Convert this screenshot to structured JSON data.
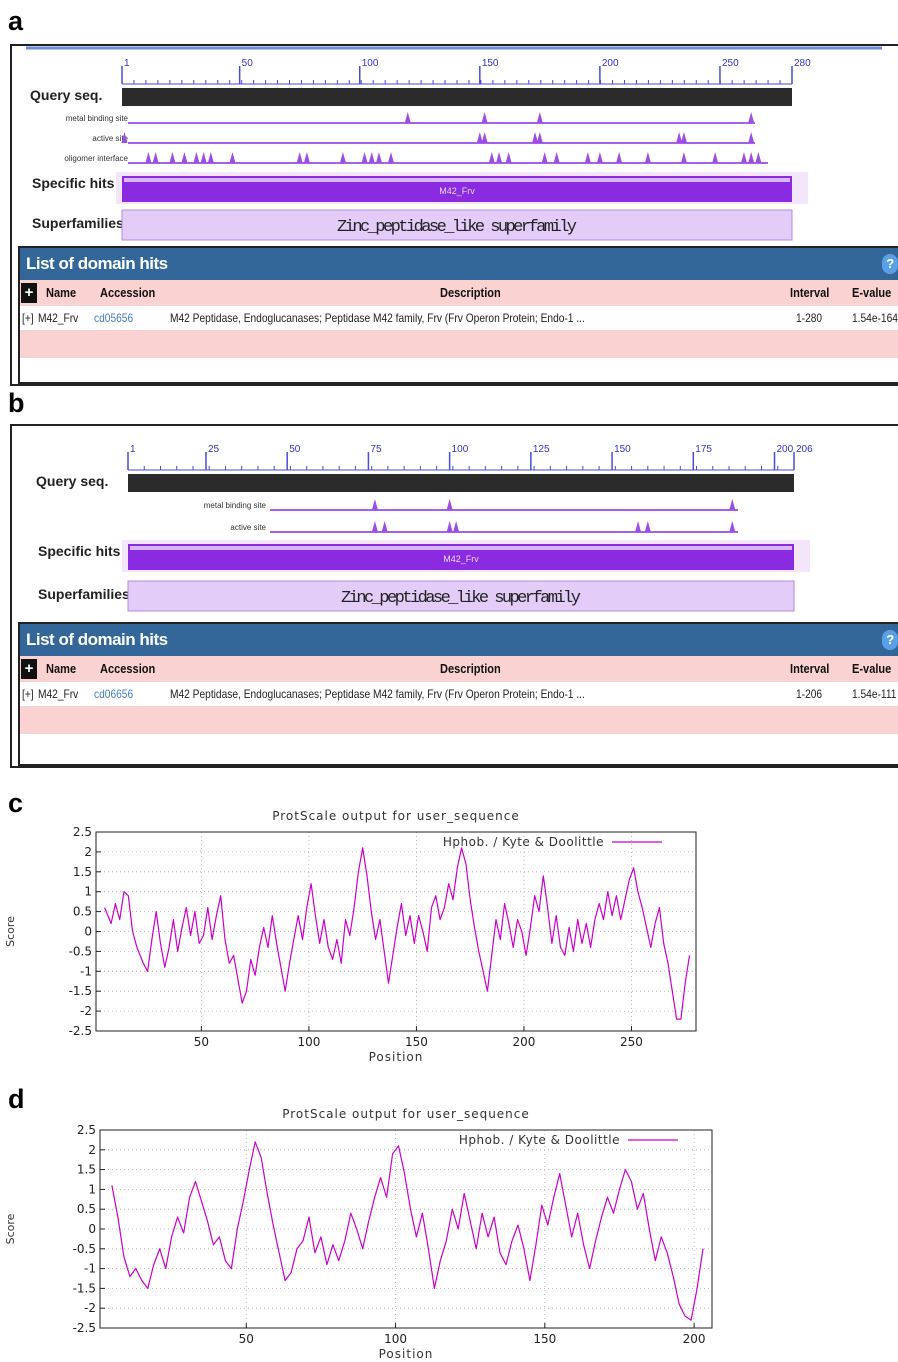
{
  "panels": {
    "a": {
      "letter": "a",
      "query_label": "Query seq.",
      "ticks": [
        "1",
        "50",
        "100",
        "150",
        "200",
        "250",
        "280"
      ],
      "feature_tracks": [
        "metal binding site",
        "active site",
        "oligomer interface"
      ],
      "specific_hits_label": "Specific hits",
      "specific_hit_name": "M42_Frv",
      "superfamilies_label": "Superfamilies",
      "superfamily_name": "Zinc_peptidase_like superfamily",
      "hits_title": "List of domain hits",
      "columns": {
        "plus": "+",
        "name": "Name",
        "accession": "Accession",
        "description": "Description",
        "interval": "Interval",
        "evalue": "E-value"
      },
      "row": {
        "expand": "[+]",
        "name": "M42_Frv",
        "accession": "cd05656",
        "description": "M42 Peptidase, Endoglucanases; Peptidase M42 family, Frv (Frv Operon Protein; Endo-1 ...",
        "interval": "1-280",
        "evalue": "1.54e-164"
      }
    },
    "b": {
      "letter": "b",
      "query_label": "Query seq.",
      "ticks": [
        "1",
        "25",
        "50",
        "75",
        "100",
        "125",
        "150",
        "175",
        "200",
        "206"
      ],
      "feature_tracks": [
        "metal binding site",
        "active site"
      ],
      "specific_hits_label": "Specific hits",
      "specific_hit_name": "M42_Frv",
      "superfamilies_label": "Superfamilies",
      "superfamily_name": "Zinc_peptidase_like superfamily",
      "hits_title": "List of domain hits",
      "columns": {
        "plus": "+",
        "name": "Name",
        "accession": "Accession",
        "description": "Description",
        "interval": "Interval",
        "evalue": "E-value"
      },
      "row": {
        "expand": "[+]",
        "name": "M42_Frv",
        "accession": "cd06656",
        "description": "M42 Peptidase, Endoglucanases; Peptidase M42 family, Frv (Frv Operon Protein; Endo-1 ...",
        "interval": "1-206",
        "evalue": "1.54e-111"
      }
    },
    "c": {
      "letter": "c"
    },
    "d": {
      "letter": "d"
    }
  },
  "chart_data": [
    {
      "type": "line",
      "title": "ProtScale output for user_sequence",
      "xlabel": "Position",
      "ylabel": "Score",
      "xticks": [
        "50",
        "100",
        "150",
        "200",
        "250"
      ],
      "yticks": [
        "2.5",
        "2",
        "1.5",
        "1",
        "0.5",
        "0",
        "-0.5",
        "-1",
        "-1.5",
        "-2",
        "-2.5"
      ],
      "xlim": [
        1,
        280
      ],
      "ylim": [
        -2.5,
        2.5
      ],
      "grid": true,
      "legend": "top-right",
      "series": [
        {
          "name": "Hphob. / Kyte & Doolittle",
          "color": "#cc00cc",
          "points": [
            [
              5,
              0.6
            ],
            [
              8,
              0.2
            ],
            [
              10,
              0.7
            ],
            [
              12,
              0.3
            ],
            [
              14,
              1.0
            ],
            [
              16,
              0.9
            ],
            [
              18,
              0.0
            ],
            [
              20,
              -0.4
            ],
            [
              23,
              -0.8
            ],
            [
              25,
              -1.0
            ],
            [
              27,
              -0.2
            ],
            [
              29,
              0.5
            ],
            [
              31,
              -0.3
            ],
            [
              33,
              -0.9
            ],
            [
              35,
              -0.4
            ],
            [
              37,
              0.3
            ],
            [
              39,
              -0.5
            ],
            [
              41,
              0.1
            ],
            [
              43,
              0.6
            ],
            [
              45,
              -0.1
            ],
            [
              47,
              0.5
            ],
            [
              49,
              -0.3
            ],
            [
              51,
              -0.1
            ],
            [
              53,
              0.6
            ],
            [
              55,
              -0.2
            ],
            [
              57,
              0.4
            ],
            [
              59,
              0.9
            ],
            [
              61,
              -0.2
            ],
            [
              63,
              -0.8
            ],
            [
              65,
              -0.6
            ],
            [
              67,
              -1.2
            ],
            [
              69,
              -1.8
            ],
            [
              71,
              -1.5
            ],
            [
              73,
              -0.7
            ],
            [
              75,
              -1.1
            ],
            [
              77,
              -0.4
            ],
            [
              79,
              0.1
            ],
            [
              81,
              -0.4
            ],
            [
              83,
              0.4
            ],
            [
              85,
              -0.3
            ],
            [
              87,
              -0.9
            ],
            [
              89,
              -1.5
            ],
            [
              91,
              -0.8
            ],
            [
              93,
              -0.2
            ],
            [
              95,
              0.4
            ],
            [
              97,
              -0.2
            ],
            [
              99,
              0.6
            ],
            [
              101,
              1.2
            ],
            [
              103,
              0.4
            ],
            [
              105,
              -0.3
            ],
            [
              107,
              0.3
            ],
            [
              109,
              -0.4
            ],
            [
              111,
              -0.7
            ],
            [
              113,
              -0.2
            ],
            [
              115,
              -0.8
            ],
            [
              117,
              0.3
            ],
            [
              119,
              -0.1
            ],
            [
              121,
              0.6
            ],
            [
              123,
              1.5
            ],
            [
              125,
              2.1
            ],
            [
              127,
              1.4
            ],
            [
              129,
              0.5
            ],
            [
              131,
              -0.2
            ],
            [
              133,
              0.3
            ],
            [
              135,
              -0.5
            ],
            [
              137,
              -1.3
            ],
            [
              139,
              -0.6
            ],
            [
              141,
              0.1
            ],
            [
              143,
              0.7
            ],
            [
              145,
              -0.1
            ],
            [
              147,
              0.4
            ],
            [
              149,
              -0.3
            ],
            [
              151,
              0.4
            ],
            [
              153,
              0.0
            ],
            [
              155,
              -0.5
            ],
            [
              157,
              0.6
            ],
            [
              159,
              0.9
            ],
            [
              161,
              0.3
            ],
            [
              163,
              0.6
            ],
            [
              165,
              1.2
            ],
            [
              167,
              0.8
            ],
            [
              169,
              1.6
            ],
            [
              171,
              2.1
            ],
            [
              173,
              1.7
            ],
            [
              175,
              0.8
            ],
            [
              177,
              0.1
            ],
            [
              179,
              -0.5
            ],
            [
              181,
              -1.0
            ],
            [
              183,
              -1.5
            ],
            [
              185,
              -0.6
            ],
            [
              187,
              0.3
            ],
            [
              189,
              -0.2
            ],
            [
              191,
              0.7
            ],
            [
              193,
              0.2
            ],
            [
              195,
              -0.4
            ],
            [
              197,
              0.3
            ],
            [
              199,
              0.0
            ],
            [
              201,
              -0.6
            ],
            [
              203,
              0.1
            ],
            [
              205,
              0.9
            ],
            [
              207,
              0.5
            ],
            [
              209,
              1.4
            ],
            [
              211,
              0.6
            ],
            [
              213,
              -0.3
            ],
            [
              215,
              0.4
            ],
            [
              217,
              -0.4
            ],
            [
              219,
              -0.6
            ],
            [
              221,
              0.1
            ],
            [
              223,
              -0.5
            ],
            [
              225,
              0.3
            ],
            [
              227,
              -0.3
            ],
            [
              229,
              0.2
            ],
            [
              231,
              -0.4
            ],
            [
              233,
              0.3
            ],
            [
              235,
              0.7
            ],
            [
              237,
              0.3
            ],
            [
              239,
              1.0
            ],
            [
              241,
              0.4
            ],
            [
              243,
              0.9
            ],
            [
              245,
              0.3
            ],
            [
              247,
              0.8
            ],
            [
              249,
              1.3
            ],
            [
              251,
              1.6
            ],
            [
              253,
              1.0
            ],
            [
              255,
              0.6
            ],
            [
              257,
              0.1
            ],
            [
              259,
              -0.4
            ],
            [
              261,
              0.2
            ],
            [
              263,
              0.6
            ],
            [
              265,
              -0.3
            ],
            [
              267,
              -0.8
            ],
            [
              269,
              -1.5
            ],
            [
              271,
              -2.2
            ],
            [
              273,
              -2.2
            ],
            [
              275,
              -1.3
            ],
            [
              277,
              -0.6
            ]
          ]
        }
      ]
    },
    {
      "type": "line",
      "title": "ProtScale output for user_sequence",
      "xlabel": "Position",
      "ylabel": "Score",
      "xticks": [
        "50",
        "100",
        "150",
        "200"
      ],
      "yticks": [
        "2.5",
        "2",
        "1.5",
        "1",
        "0.5",
        "0",
        "-0.5",
        "-1",
        "-1.5",
        "-2",
        "-2.5"
      ],
      "xlim": [
        1,
        206
      ],
      "ylim": [
        -2.5,
        2.5
      ],
      "grid": true,
      "legend": "top-right",
      "series": [
        {
          "name": "Hphob. / Kyte & Doolittle",
          "color": "#cc00cc",
          "points": [
            [
              5,
              1.1
            ],
            [
              7,
              0.3
            ],
            [
              9,
              -0.7
            ],
            [
              11,
              -1.2
            ],
            [
              13,
              -1.0
            ],
            [
              15,
              -1.3
            ],
            [
              17,
              -1.5
            ],
            [
              19,
              -0.9
            ],
            [
              21,
              -0.5
            ],
            [
              23,
              -1.0
            ],
            [
              25,
              -0.2
            ],
            [
              27,
              0.3
            ],
            [
              29,
              -0.1
            ],
            [
              31,
              0.8
            ],
            [
              33,
              1.2
            ],
            [
              35,
              0.7
            ],
            [
              37,
              0.2
            ],
            [
              39,
              -0.4
            ],
            [
              41,
              -0.2
            ],
            [
              43,
              -0.8
            ],
            [
              45,
              -1.0
            ],
            [
              47,
              0.0
            ],
            [
              49,
              0.7
            ],
            [
              51,
              1.5
            ],
            [
              53,
              2.2
            ],
            [
              55,
              1.8
            ],
            [
              57,
              0.9
            ],
            [
              59,
              0.1
            ],
            [
              61,
              -0.6
            ],
            [
              63,
              -1.3
            ],
            [
              65,
              -1.1
            ],
            [
              67,
              -0.5
            ],
            [
              69,
              -0.3
            ],
            [
              71,
              0.3
            ],
            [
              73,
              -0.6
            ],
            [
              75,
              -0.2
            ],
            [
              77,
              -0.9
            ],
            [
              79,
              -0.4
            ],
            [
              81,
              -0.8
            ],
            [
              83,
              -0.3
            ],
            [
              85,
              0.4
            ],
            [
              87,
              0.0
            ],
            [
              89,
              -0.5
            ],
            [
              91,
              0.2
            ],
            [
              93,
              0.8
            ],
            [
              95,
              1.3
            ],
            [
              97,
              0.8
            ],
            [
              99,
              1.9
            ],
            [
              101,
              2.1
            ],
            [
              103,
              1.4
            ],
            [
              105,
              0.5
            ],
            [
              107,
              -0.2
            ],
            [
              109,
              0.4
            ],
            [
              111,
              -0.5
            ],
            [
              113,
              -1.5
            ],
            [
              115,
              -0.8
            ],
            [
              117,
              -0.3
            ],
            [
              119,
              0.5
            ],
            [
              121,
              0.0
            ],
            [
              123,
              0.9
            ],
            [
              125,
              0.2
            ],
            [
              127,
              -0.5
            ],
            [
              129,
              0.4
            ],
            [
              131,
              -0.2
            ],
            [
              133,
              0.3
            ],
            [
              135,
              -0.6
            ],
            [
              137,
              -0.9
            ],
            [
              139,
              -0.3
            ],
            [
              141,
              0.1
            ],
            [
              143,
              -0.5
            ],
            [
              145,
              -1.3
            ],
            [
              147,
              -0.4
            ],
            [
              149,
              0.6
            ],
            [
              151,
              0.1
            ],
            [
              153,
              0.8
            ],
            [
              155,
              1.4
            ],
            [
              157,
              0.6
            ],
            [
              159,
              -0.2
            ],
            [
              161,
              0.4
            ],
            [
              163,
              -0.4
            ],
            [
              165,
              -1.0
            ],
            [
              167,
              -0.3
            ],
            [
              169,
              0.3
            ],
            [
              171,
              0.8
            ],
            [
              173,
              0.4
            ],
            [
              175,
              1.0
            ],
            [
              177,
              1.5
            ],
            [
              179,
              1.2
            ],
            [
              181,
              0.5
            ],
            [
              183,
              0.9
            ],
            [
              185,
              0.0
            ],
            [
              187,
              -0.8
            ],
            [
              189,
              -0.2
            ],
            [
              191,
              -0.6
            ],
            [
              193,
              -1.2
            ],
            [
              195,
              -1.9
            ],
            [
              197,
              -2.2
            ],
            [
              199,
              -2.3
            ],
            [
              201,
              -1.5
            ],
            [
              203,
              -0.5
            ]
          ]
        }
      ]
    }
  ]
}
